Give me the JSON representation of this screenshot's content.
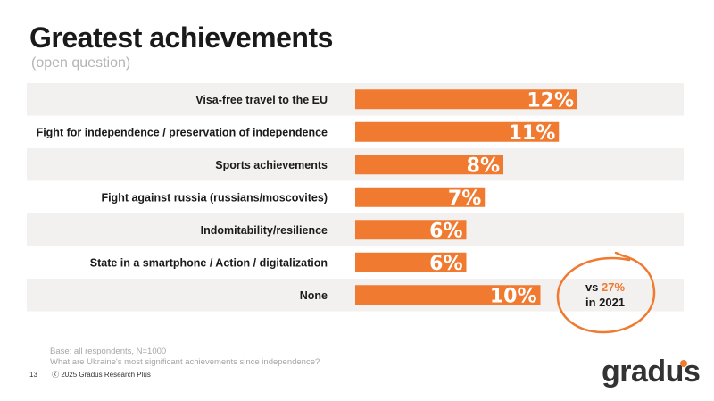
{
  "header": {
    "title": "Greatest achievements",
    "subtitle": "(open question)"
  },
  "chart_data": {
    "type": "bar",
    "orientation": "horizontal",
    "title": "Greatest achievements",
    "subtitle": "(open question)",
    "unit": "%",
    "categories": [
      "Visa-free travel to the EU",
      "Fight for independence / preservation of independence",
      "Sports achievements",
      "Fight against russia (russians/moscovites)",
      "Indomitability/resilience",
      "State in a smartphone / Action / digitalization",
      "None"
    ],
    "values": [
      12,
      11,
      8,
      7,
      6,
      6,
      10
    ],
    "value_labels": [
      "12%",
      "11%",
      "8%",
      "7%",
      "6%",
      "6%",
      "10%"
    ],
    "xlim": [
      0,
      13
    ],
    "grid": false,
    "colors": {
      "bar": "#ef7a30",
      "stripe": "#f3f1ef"
    }
  },
  "callout": {
    "prefix": "vs ",
    "value": "27%",
    "suffix": "in 2021",
    "color": "#ef7a30"
  },
  "notes": {
    "base": "Base: all respondents, N=1000",
    "question": "What are Ukraine's most significant achievements since independence?"
  },
  "footer": {
    "page_number": "13",
    "copyright": "ⓒ 2025 Gradus Research Plus"
  },
  "logo": {
    "text": "gradus"
  }
}
